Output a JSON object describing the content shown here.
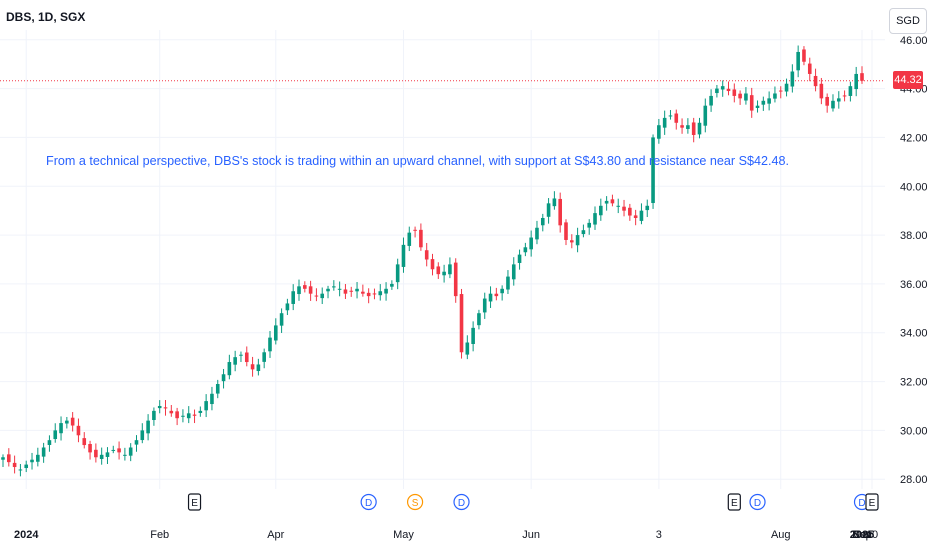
{
  "header": {
    "symbol": "DBS, 1D, SGX"
  },
  "currency_button": "SGD",
  "annotation_text": "From a technical perspective, DBS's stock is trading within an upward channel, with support at S$43.80 and resistance near S$42.48.",
  "last_price_label": "44.32",
  "colors": {
    "up": "#089981",
    "down": "#f23645",
    "grid": "#f0f3fa",
    "text": "#131722",
    "annotation": "#2962ff",
    "event_dividend": "#2962ff",
    "event_split": "#ff9800",
    "event_earnings": "#131722"
  },
  "chart_data": {
    "type": "candlestick",
    "title": "",
    "ylim": [
      27.6,
      46.4
    ],
    "y_ticks": [
      "28.00",
      "30.00",
      "32.00",
      "34.00",
      "36.00",
      "38.00",
      "40.00",
      "42.00",
      "44.00",
      "46.00"
    ],
    "x_ticks": [
      "2024",
      "Feb",
      "Apr",
      "May",
      "Jun",
      "3",
      "Aug",
      "Sep",
      "Oct",
      "Nov",
      "Dec",
      "2025",
      "10"
    ],
    "last_price": 44.32,
    "closes": [
      28.9,
      28.7,
      28.5,
      28.4,
      28.6,
      28.8,
      29.0,
      29.3,
      29.6,
      30.0,
      30.3,
      30.4,
      30.2,
      29.8,
      29.4,
      29.1,
      28.9,
      29.0,
      29.1,
      29.2,
      29.1,
      29.0,
      29.3,
      29.6,
      30.0,
      30.4,
      30.8,
      31.0,
      30.9,
      30.7,
      30.5,
      30.6,
      30.7,
      30.6,
      30.8,
      31.2,
      31.5,
      31.9,
      32.3,
      32.8,
      33.0,
      33.1,
      32.8,
      32.5,
      32.7,
      33.2,
      33.8,
      34.3,
      34.8,
      35.2,
      35.7,
      35.9,
      35.8,
      35.6,
      35.5,
      35.6,
      35.8,
      35.9,
      35.8,
      35.6,
      35.7,
      35.8,
      35.6,
      35.5,
      35.6,
      35.7,
      35.8,
      36.0,
      36.8,
      37.6,
      38.1,
      38.2,
      37.5,
      37.0,
      36.6,
      36.4,
      36.5,
      36.8,
      35.5,
      33.2,
      33.6,
      34.2,
      34.8,
      35.4,
      35.6,
      35.5,
      35.8,
      36.3,
      36.8,
      37.2,
      37.5,
      37.9,
      38.3,
      38.7,
      39.3,
      39.5,
      38.4,
      37.8,
      37.7,
      38.0,
      38.2,
      38.5,
      38.9,
      39.2,
      39.4,
      39.3,
      39.2,
      39.0,
      38.8,
      38.7,
      39.0,
      39.2,
      42.0,
      42.5,
      42.8,
      42.9,
      42.6,
      42.4,
      42.5,
      42.1,
      42.6,
      43.3,
      43.7,
      44.0,
      44.1,
      43.9,
      43.7,
      43.6,
      43.8,
      43.1,
      43.3,
      43.5,
      43.6,
      43.8,
      43.9,
      44.2,
      44.7,
      45.5,
      45.1,
      44.6,
      44.1,
      43.6,
      43.3,
      43.5,
      43.6,
      43.7,
      44.1,
      44.6,
      44.32
    ],
    "x_axis_start": "2023-12-26",
    "events": [
      {
        "type": "earnings",
        "label": "E"
      },
      {
        "type": "dividend",
        "label": "D"
      },
      {
        "type": "split",
        "label": "S"
      },
      {
        "type": "dividend",
        "label": "D"
      },
      {
        "type": "earnings",
        "label": "E"
      },
      {
        "type": "dividend",
        "label": "D"
      },
      {
        "type": "dividend",
        "label": "D"
      },
      {
        "type": "earnings",
        "label": "E"
      }
    ]
  }
}
